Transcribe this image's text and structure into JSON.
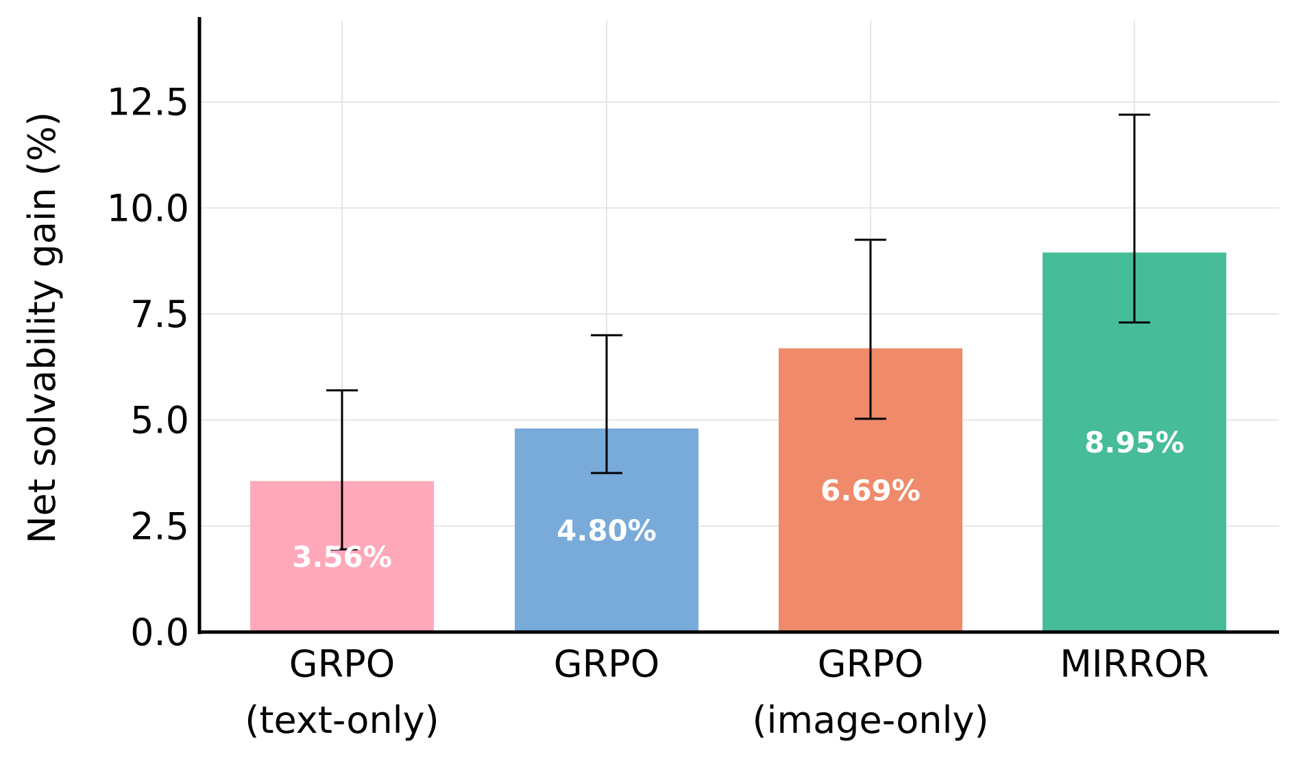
{
  "chart_data": {
    "type": "bar",
    "title": "",
    "ylabel": "Net solvability gain (%)",
    "xlabel": "",
    "ylim": [
      0,
      14.5
    ],
    "yticks": [
      "0.0",
      "2.5",
      "5.0",
      "7.5",
      "10.0",
      "12.5"
    ],
    "ytick_values": [
      0,
      2.5,
      5.0,
      7.5,
      10.0,
      12.5
    ],
    "grid": true,
    "bars": [
      {
        "line1": "GRPO",
        "line2": "(text-only)",
        "value": 3.56,
        "label": "3.56%",
        "err_low": 1.95,
        "err_high": 5.7,
        "color": "#ffa8ba"
      },
      {
        "line1": "GRPO",
        "line2": "",
        "value": 4.8,
        "label": "4.80%",
        "err_low": 3.75,
        "err_high": 7.0,
        "color": "#78aada"
      },
      {
        "line1": "GRPO",
        "line2": "(image-only)",
        "value": 6.69,
        "label": "6.69%",
        "err_low": 5.03,
        "err_high": 9.25,
        "color": "#ef8a6a"
      },
      {
        "line1": "MIRROR",
        "line2": "",
        "value": 8.95,
        "label": "8.95%",
        "err_low": 7.3,
        "err_high": 12.2,
        "color": "#46bc98"
      }
    ]
  }
}
